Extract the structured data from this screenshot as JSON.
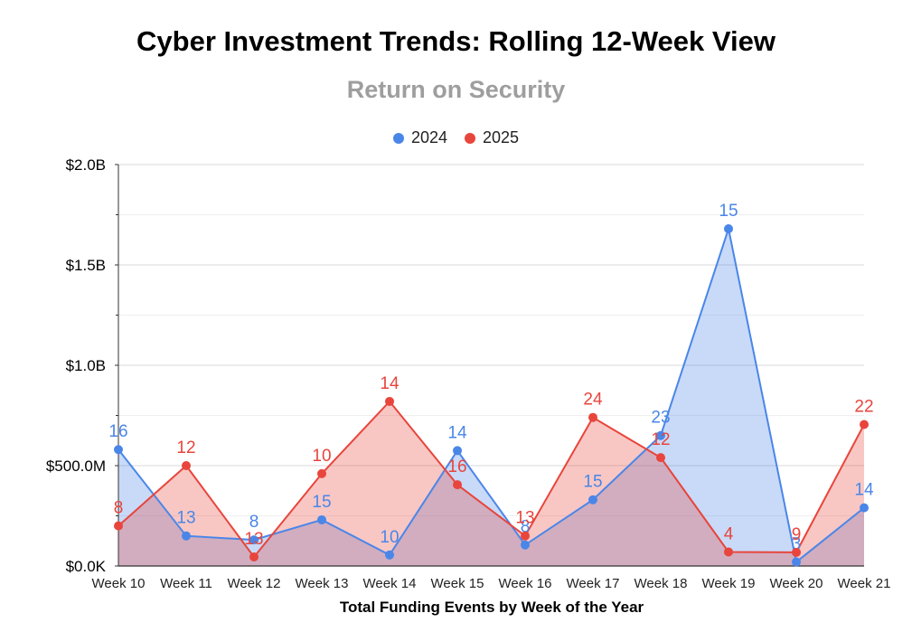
{
  "chart_data": {
    "type": "area",
    "title": "Cyber Investment Trends: Rolling 12-Week View",
    "subtitle": "Return on Security",
    "xlabel": "Total Funding Events by Week of the Year",
    "ylabel": "",
    "categories": [
      "Week 10",
      "Week 11",
      "Week 12",
      "Week 13",
      "Week 14",
      "Week 15",
      "Week 16",
      "Week 17",
      "Week 18",
      "Week 19",
      "Week 20",
      "Week 21"
    ],
    "ylim": [
      0,
      2000000000
    ],
    "yticks": [
      0,
      500000000,
      1000000000,
      1500000000,
      2000000000
    ],
    "ytick_labels": [
      "$0.0K",
      "$500.0M",
      "$1.0B",
      "$1.5B",
      "$2.0B"
    ],
    "legend_position": "top-center",
    "grid": true,
    "series": [
      {
        "name": "2024",
        "color": "#4a86e8",
        "fill": "#c9daf8",
        "values": [
          580000000,
          150000000,
          130000000,
          230000000,
          55000000,
          575000000,
          105000000,
          330000000,
          650000000,
          1680000000,
          20000000,
          290000000
        ],
        "labels": [
          "16",
          "13",
          "8",
          "15",
          "10",
          "14",
          "8",
          "15",
          "23",
          "15",
          "3",
          "14"
        ]
      },
      {
        "name": "2025",
        "color": "#e8453c",
        "fill": "#f4c2bf",
        "values": [
          200000000,
          500000000,
          45000000,
          460000000,
          820000000,
          405000000,
          150000000,
          740000000,
          540000000,
          70000000,
          68000000,
          705000000
        ],
        "labels": [
          "8",
          "12",
          "13",
          "10",
          "14",
          "16",
          "13",
          "24",
          "12",
          "4",
          "9",
          "22"
        ]
      }
    ]
  }
}
